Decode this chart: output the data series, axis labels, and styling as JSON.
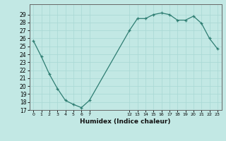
{
  "x": [
    0,
    1,
    2,
    3,
    4,
    5,
    6,
    7,
    12,
    13,
    14,
    15,
    16,
    17,
    18,
    19,
    20,
    21,
    22,
    23
  ],
  "y": [
    25.7,
    23.7,
    21.5,
    19.7,
    18.2,
    17.7,
    17.3,
    18.2,
    27.0,
    28.5,
    28.5,
    29.0,
    29.2,
    29.0,
    28.3,
    28.3,
    28.8,
    27.9,
    26.0,
    24.7
  ],
  "line_color": "#2e7d72",
  "bg_color": "#c2e8e4",
  "grid_color": "#a8d8d4",
  "xlabel": "Humidex (Indice chaleur)",
  "ylim": [
    17,
    30
  ],
  "yticks": [
    17,
    18,
    19,
    20,
    21,
    22,
    23,
    24,
    25,
    26,
    27,
    28,
    29
  ],
  "xlim": [
    -0.5,
    23.5
  ],
  "spine_color": "#666666"
}
